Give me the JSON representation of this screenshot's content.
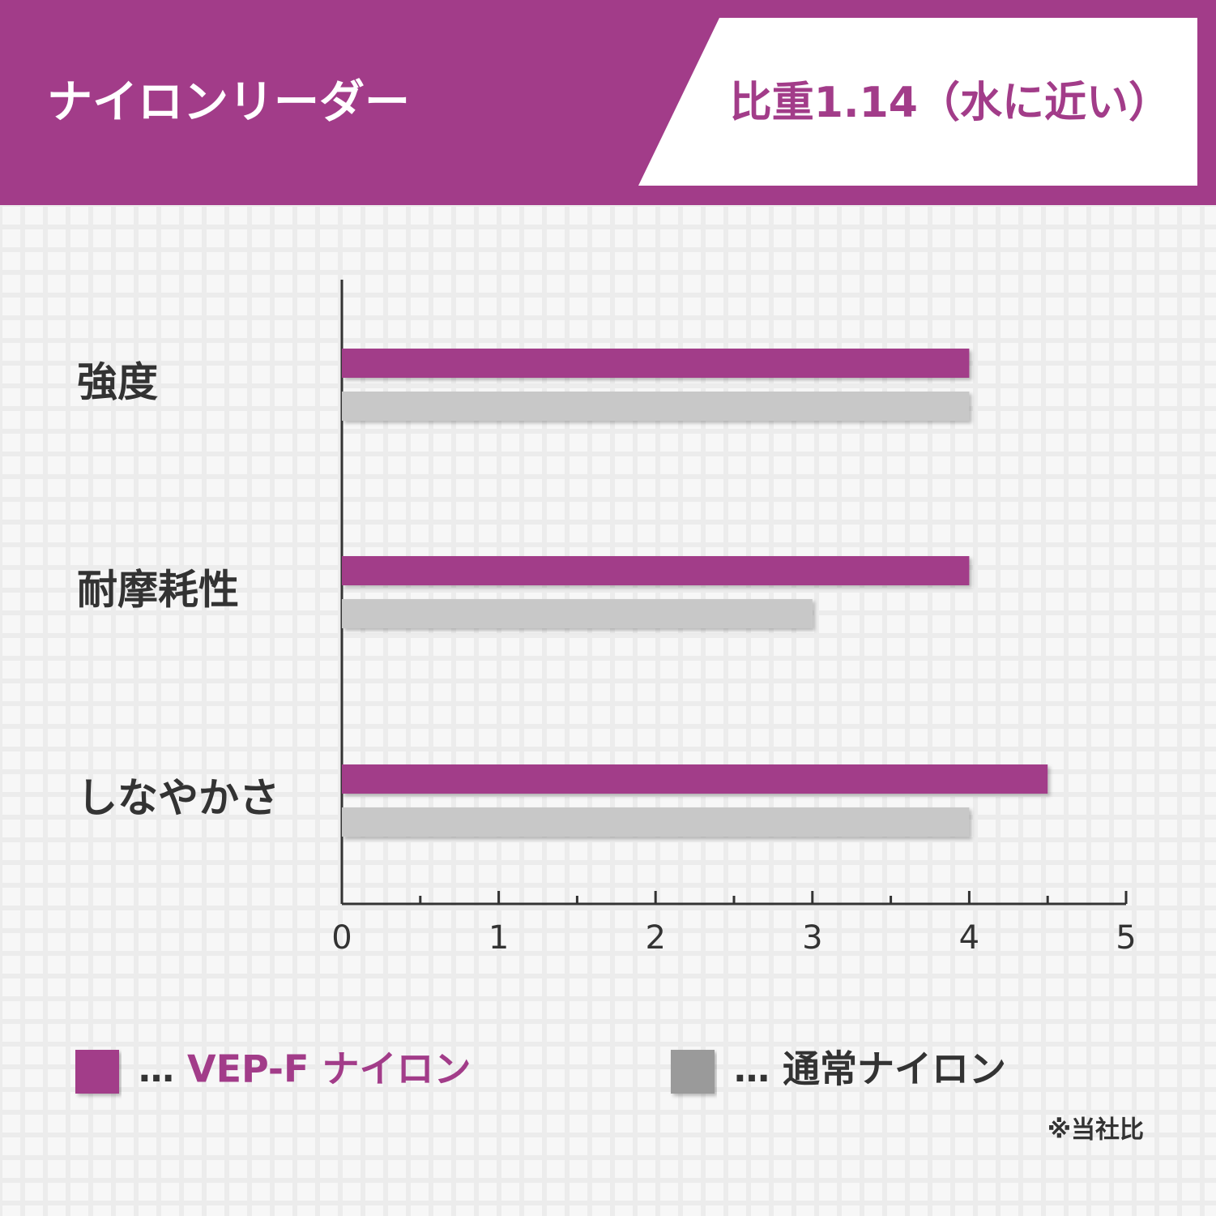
{
  "header": {
    "title": "ナイロンリーダー",
    "badge": "比重1.14（水に近い）"
  },
  "chart_data": {
    "type": "hbar",
    "categories": [
      "強度",
      "耐摩耗性",
      "しなやかさ"
    ],
    "series": [
      {
        "name": "VEP-F ナイロン",
        "color": "#a23c89",
        "values": [
          4,
          4,
          4.5
        ]
      },
      {
        "name": "通常ナイロン",
        "color": "#c8c8c8",
        "values": [
          4,
          3,
          4
        ]
      }
    ],
    "legend_marker": "…",
    "xlim": [
      0,
      5
    ],
    "xticks": [
      0,
      1,
      2,
      3,
      4,
      5
    ],
    "xminorticks": [
      0.5,
      1.5,
      2.5,
      3.5,
      4.5
    ],
    "note": "※当社比"
  }
}
